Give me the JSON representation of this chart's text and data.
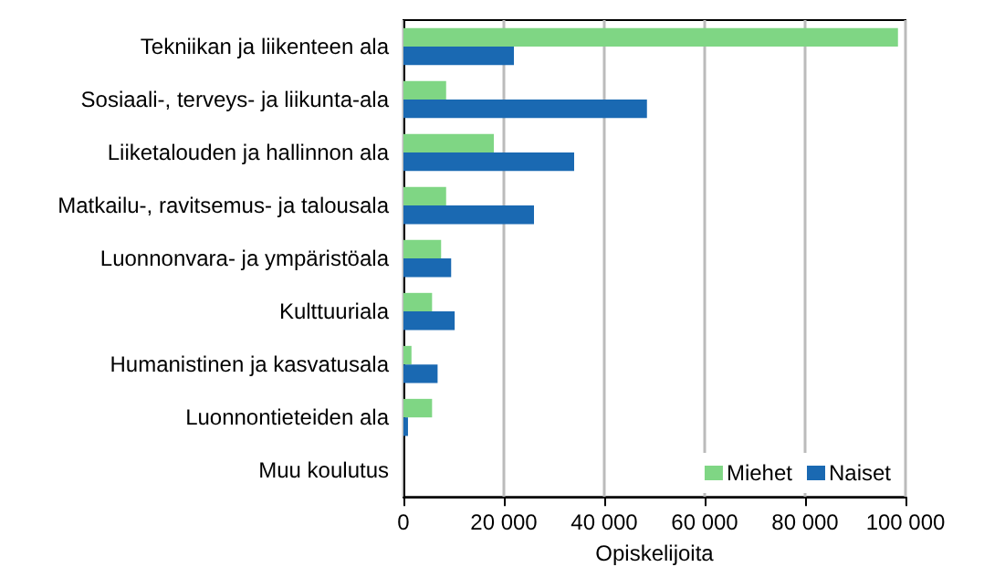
{
  "chart_data": {
    "type": "bar",
    "orientation": "horizontal",
    "xlabel": "Opiskelijoita",
    "categories": [
      "Tekniikan ja liikenteen ala",
      "Sosiaali-, terveys- ja liikunta-ala",
      "Liiketalouden ja hallinnon ala",
      "Matkailu-, ravitsemus- ja talousala",
      "Luonnonvara- ja ympäristöala",
      "Kulttuuriala",
      "Humanistinen ja kasvatusala",
      "Luonnontieteiden ala",
      "Muu koulutus"
    ],
    "series": [
      {
        "name": "Miehet",
        "color": "#7fd684",
        "values": [
          98500,
          8500,
          18000,
          8500,
          7500,
          5700,
          1600,
          5700,
          0
        ]
      },
      {
        "name": "Naiset",
        "color": "#1a69b2",
        "values": [
          22000,
          48500,
          34000,
          26000,
          9500,
          10200,
          6800,
          900,
          0
        ]
      }
    ],
    "xlim": [
      0,
      100000
    ],
    "xticks": [
      {
        "value": 0,
        "label": "0"
      },
      {
        "value": 20000,
        "label": "20 000"
      },
      {
        "value": 40000,
        "label": "40 000"
      },
      {
        "value": 60000,
        "label": "60 000"
      },
      {
        "value": 80000,
        "label": "80 000"
      },
      {
        "value": 100000,
        "label": "100 000"
      }
    ],
    "grid": "x",
    "legend": "bottom right"
  }
}
